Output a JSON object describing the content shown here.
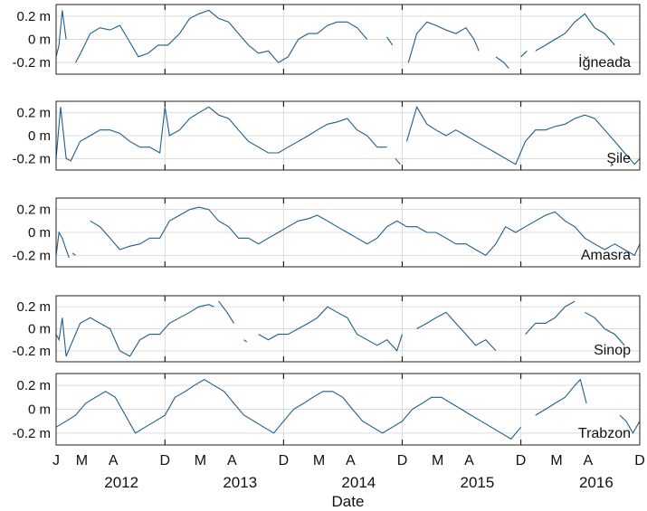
{
  "chart_data": {
    "type": "line",
    "title": "",
    "xlabel": "Date",
    "line_color": "#1f5d8c",
    "grid": true,
    "x_range": [
      "2012-01-01",
      "2016-12-01"
    ],
    "x_tick_labels": [
      "J",
      "M",
      "A",
      "D",
      "M",
      "A",
      "D",
      "M",
      "A",
      "D",
      "M",
      "A",
      "D",
      "M",
      "A",
      "D"
    ],
    "year_labels": [
      "2012",
      "2013",
      "2014",
      "2015",
      "2016"
    ],
    "y_tick_labels": [
      "0.2 m",
      "0 m",
      "-0.2 m"
    ],
    "y_ticks": [
      0.2,
      0,
      -0.2
    ],
    "ylim": [
      -0.3,
      0.3
    ],
    "panels": [
      {
        "name": "İğneada",
        "series": [
          {
            "x": [
              "2012-01-01",
              "2012-01-10",
              "2012-01-20",
              "2012-02-01"
            ],
            "y": [
              -0.15,
              -0.05,
              0.25,
              0.0
            ]
          },
          {
            "x": [
              "2012-03-01",
              "2012-03-20",
              "2012-04-15",
              "2012-05-15",
              "2012-06-15",
              "2012-07-15",
              "2012-08-10",
              "2012-09-10",
              "2012-10-10",
              "2012-11-10",
              "2012-12-10",
              "2013-01-15",
              "2013-02-15",
              "2013-03-15",
              "2013-04-15",
              "2013-05-15",
              "2013-06-15",
              "2013-07-15",
              "2013-08-15",
              "2013-09-15",
              "2013-10-15",
              "2013-11-15",
              "2013-12-15",
              "2014-01-15",
              "2014-02-15",
              "2014-03-15",
              "2014-04-15",
              "2014-05-15",
              "2014-06-15",
              "2014-07-15",
              "2014-08-15"
            ],
            "y": [
              -0.2,
              -0.1,
              0.05,
              0.1,
              0.08,
              0.12,
              0.0,
              -0.15,
              -0.12,
              -0.05,
              -0.05,
              0.05,
              0.18,
              0.22,
              0.25,
              0.18,
              0.15,
              0.05,
              -0.05,
              -0.12,
              -0.1,
              -0.2,
              -0.15,
              0.0,
              0.05,
              0.05,
              0.12,
              0.15,
              0.15,
              0.1,
              0.0
            ]
          },
          {
            "x": [
              "2014-10-15",
              "2014-11-01"
            ],
            "y": [
              0.02,
              -0.05
            ]
          },
          {
            "x": [
              "2014-12-20",
              "2015-01-15",
              "2015-02-15",
              "2015-03-15",
              "2015-04-15",
              "2015-05-15",
              "2015-06-15",
              "2015-07-10",
              "2015-07-25"
            ],
            "y": [
              -0.2,
              0.05,
              0.15,
              0.12,
              0.08,
              0.05,
              0.1,
              0.0,
              -0.1
            ]
          },
          {
            "x": [
              "2015-09-15",
              "2015-10-10",
              "2015-10-25"
            ],
            "y": [
              -0.15,
              -0.2,
              -0.25
            ]
          },
          {
            "x": [
              "2015-12-01",
              "2015-12-20"
            ],
            "y": [
              -0.15,
              -0.1
            ]
          },
          {
            "x": [
              "2016-01-15",
              "2016-02-15",
              "2016-03-15",
              "2016-04-15",
              "2016-05-15",
              "2016-06-15",
              "2016-07-15",
              "2016-08-15",
              "2016-09-15"
            ],
            "y": [
              -0.1,
              -0.05,
              0.0,
              0.05,
              0.15,
              0.22,
              0.1,
              0.05,
              -0.05
            ]
          },
          {
            "x": [
              "2016-10-01",
              "2016-10-20"
            ],
            "y": [
              -0.15,
              -0.18
            ]
          }
        ]
      },
      {
        "name": "Şile",
        "series": [
          {
            "x": [
              "2012-01-01",
              "2012-01-15",
              "2012-02-01",
              "2012-02-15",
              "2012-03-15",
              "2012-04-15",
              "2012-05-15",
              "2012-06-15",
              "2012-07-15",
              "2012-08-15",
              "2012-09-15",
              "2012-10-15",
              "2012-11-15",
              "2012-12-01",
              "2012-12-15",
              "2013-01-15",
              "2013-02-15",
              "2013-03-15",
              "2013-04-15",
              "2013-05-15",
              "2013-06-15",
              "2013-07-15",
              "2013-08-15",
              "2013-09-15",
              "2013-10-15",
              "2013-11-15",
              "2013-12-15",
              "2014-01-15",
              "2014-02-15",
              "2014-03-15",
              "2014-04-15",
              "2014-05-15",
              "2014-06-15",
              "2014-07-15",
              "2014-08-15",
              "2014-09-15",
              "2014-10-15"
            ],
            "y": [
              -0.2,
              0.25,
              -0.2,
              -0.22,
              -0.05,
              0.0,
              0.05,
              0.05,
              0.02,
              -0.05,
              -0.1,
              -0.1,
              -0.15,
              0.25,
              0.0,
              0.05,
              0.15,
              0.2,
              0.25,
              0.18,
              0.15,
              0.05,
              -0.05,
              -0.1,
              -0.15,
              -0.15,
              -0.1,
              -0.05,
              0.0,
              0.05,
              0.1,
              0.12,
              0.15,
              0.05,
              0.0,
              -0.1,
              -0.1
            ]
          },
          {
            "x": [
              "2014-11-10",
              "2014-11-25"
            ],
            "y": [
              -0.2,
              -0.25
            ]
          },
          {
            "x": [
              "2014-12-15",
              "2015-01-15",
              "2015-02-15",
              "2015-03-15",
              "2015-04-15",
              "2015-05-15",
              "2015-06-15",
              "2015-07-15",
              "2015-08-15",
              "2015-09-15",
              "2015-10-15",
              "2015-11-15",
              "2015-12-15",
              "2016-01-15",
              "2016-02-15",
              "2016-03-15",
              "2016-04-15",
              "2016-05-15",
              "2016-06-15",
              "2016-07-15",
              "2016-08-15",
              "2016-09-15",
              "2016-10-15",
              "2016-11-15",
              "2016-12-01"
            ],
            "y": [
              -0.05,
              0.25,
              0.1,
              0.05,
              0.0,
              0.05,
              0.0,
              -0.05,
              -0.1,
              -0.15,
              -0.2,
              -0.25,
              -0.05,
              0.05,
              0.05,
              0.08,
              0.1,
              0.15,
              0.18,
              0.15,
              0.05,
              -0.05,
              -0.15,
              -0.25,
              -0.2
            ]
          }
        ]
      },
      {
        "name": "Amasra",
        "series": [
          {
            "x": [
              "2012-01-01",
              "2012-01-10",
              "2012-01-20",
              "2012-02-01",
              "2012-02-10"
            ],
            "y": [
              -0.2,
              0.0,
              -0.05,
              -0.15,
              -0.22
            ]
          },
          {
            "x": [
              "2012-02-20",
              "2012-03-01"
            ],
            "y": [
              -0.18,
              -0.2
            ]
          },
          {
            "x": [
              "2012-04-15",
              "2012-05-15",
              "2012-06-15",
              "2012-07-15",
              "2012-08-15",
              "2012-09-15",
              "2012-10-15",
              "2012-11-15",
              "2012-12-15",
              "2013-01-15",
              "2013-02-15",
              "2013-03-15",
              "2013-04-15",
              "2013-05-15",
              "2013-06-15",
              "2013-07-15",
              "2013-08-15",
              "2013-09-15",
              "2013-10-15",
              "2013-11-15",
              "2013-12-15",
              "2014-01-15",
              "2014-02-15",
              "2014-03-15",
              "2014-04-15",
              "2014-05-15",
              "2014-06-15",
              "2014-07-15",
              "2014-08-15",
              "2014-09-15",
              "2014-10-15",
              "2014-11-15",
              "2014-12-15",
              "2015-01-15",
              "2015-02-15",
              "2015-03-15",
              "2015-04-15",
              "2015-05-15",
              "2015-06-15",
              "2015-07-15",
              "2015-08-15",
              "2015-09-15",
              "2015-10-15",
              "2015-11-15",
              "2015-12-15",
              "2016-01-15",
              "2016-02-15",
              "2016-03-15",
              "2016-04-15",
              "2016-05-15",
              "2016-06-15",
              "2016-07-15",
              "2016-08-15",
              "2016-09-15",
              "2016-10-15",
              "2016-11-15",
              "2016-12-01"
            ],
            "y": [
              0.1,
              0.05,
              -0.05,
              -0.15,
              -0.12,
              -0.1,
              -0.05,
              -0.05,
              0.1,
              0.15,
              0.2,
              0.22,
              0.2,
              0.1,
              0.05,
              -0.05,
              -0.05,
              -0.1,
              -0.05,
              0.0,
              0.05,
              0.1,
              0.12,
              0.15,
              0.1,
              0.05,
              0.0,
              -0.05,
              -0.1,
              -0.05,
              0.05,
              0.1,
              0.05,
              0.05,
              0.0,
              0.0,
              -0.05,
              -0.1,
              -0.1,
              -0.15,
              -0.2,
              -0.1,
              0.05,
              0.0,
              0.05,
              0.1,
              0.15,
              0.18,
              0.1,
              0.05,
              -0.05,
              -0.1,
              -0.15,
              -0.1,
              -0.15,
              -0.2,
              -0.1
            ]
          }
        ]
      },
      {
        "name": "Sinop",
        "series": [
          {
            "x": [
              "2012-01-01",
              "2012-01-10",
              "2012-01-20",
              "2012-02-01",
              "2012-02-15",
              "2012-03-15",
              "2012-04-15",
              "2012-05-15",
              "2012-06-15",
              "2012-07-15",
              "2012-08-15",
              "2012-09-15",
              "2012-10-15",
              "2012-11-15",
              "2012-12-15",
              "2013-01-15",
              "2013-02-15",
              "2013-03-15",
              "2013-04-15",
              "2013-05-01"
            ],
            "y": [
              -0.05,
              -0.1,
              0.1,
              -0.25,
              -0.15,
              0.05,
              0.1,
              0.05,
              0.0,
              -0.2,
              -0.25,
              -0.1,
              -0.05,
              -0.05,
              0.05,
              0.1,
              0.15,
              0.2,
              0.22,
              0.2
            ]
          },
          {
            "x": [
              "2013-05-15",
              "2013-06-10",
              "2013-07-01"
            ],
            "y": [
              0.25,
              0.15,
              0.05
            ]
          },
          {
            "x": [
              "2013-08-01",
              "2013-08-10"
            ],
            "y": [
              -0.1,
              -0.12
            ]
          },
          {
            "x": [
              "2013-09-15",
              "2013-10-15",
              "2013-11-15",
              "2013-12-15",
              "2014-01-15",
              "2014-02-15",
              "2014-03-15",
              "2014-04-15",
              "2014-05-15",
              "2014-06-15",
              "2014-07-15",
              "2014-08-15",
              "2014-09-15",
              "2014-10-15",
              "2014-11-15",
              "2014-12-01"
            ],
            "y": [
              -0.05,
              -0.1,
              -0.05,
              -0.05,
              0.0,
              0.05,
              0.1,
              0.2,
              0.15,
              0.1,
              -0.05,
              -0.1,
              -0.15,
              -0.1,
              -0.2,
              -0.05
            ]
          },
          {
            "x": [
              "2015-01-15",
              "2015-02-15",
              "2015-03-15",
              "2015-04-15",
              "2015-05-15",
              "2015-06-15",
              "2015-07-15",
              "2015-08-15",
              "2015-09-15"
            ],
            "y": [
              0.0,
              0.05,
              0.1,
              0.15,
              0.05,
              -0.05,
              -0.15,
              -0.1,
              -0.2
            ]
          },
          {
            "x": [
              "2015-12-15",
              "2016-01-15",
              "2016-02-15",
              "2016-03-15",
              "2016-04-15",
              "2016-05-15"
            ],
            "y": [
              -0.05,
              0.05,
              0.05,
              0.1,
              0.2,
              0.25
            ]
          },
          {
            "x": [
              "2016-06-15",
              "2016-07-15",
              "2016-08-15",
              "2016-09-15",
              "2016-10-15"
            ],
            "y": [
              0.15,
              0.1,
              0.0,
              -0.05,
              -0.15
            ]
          }
        ]
      },
      {
        "name": "Trabzon",
        "series": [
          {
            "x": [
              "2012-01-01",
              "2012-02-01",
              "2012-03-01",
              "2012-04-01",
              "2012-05-01",
              "2012-06-01",
              "2012-07-01",
              "2012-08-01",
              "2012-09-01",
              "2012-10-01",
              "2012-11-01",
              "2012-12-01",
              "2013-01-01",
              "2013-02-01",
              "2013-03-01",
              "2013-04-01",
              "2013-05-01",
              "2013-06-01",
              "2013-07-01",
              "2013-08-01",
              "2013-09-01",
              "2013-10-01",
              "2013-11-01",
              "2013-12-01",
              "2014-01-01",
              "2014-02-01",
              "2014-03-01",
              "2014-04-01",
              "2014-05-01",
              "2014-06-01",
              "2014-07-01",
              "2014-08-01",
              "2014-09-01",
              "2014-10-01",
              "2014-11-01",
              "2014-12-01",
              "2015-01-01",
              "2015-02-01",
              "2015-03-01",
              "2015-04-01",
              "2015-05-01",
              "2015-06-01",
              "2015-07-01",
              "2015-08-01",
              "2015-09-01",
              "2015-10-01",
              "2015-11-01",
              "2015-12-01"
            ],
            "y": [
              -0.15,
              -0.1,
              -0.05,
              0.05,
              0.1,
              0.15,
              0.1,
              -0.05,
              -0.2,
              -0.15,
              -0.1,
              -0.05,
              0.1,
              0.15,
              0.2,
              0.25,
              0.2,
              0.15,
              0.05,
              -0.05,
              -0.1,
              -0.15,
              -0.2,
              -0.1,
              0.0,
              0.05,
              0.1,
              0.15,
              0.15,
              0.1,
              0.0,
              -0.1,
              -0.15,
              -0.2,
              -0.15,
              -0.1,
              0.0,
              0.05,
              0.1,
              0.1,
              0.05,
              0.0,
              -0.05,
              -0.1,
              -0.15,
              -0.2,
              -0.25,
              -0.15
            ]
          },
          {
            "x": [
              "2016-01-15",
              "2016-02-15",
              "2016-03-15",
              "2016-04-15",
              "2016-05-15",
              "2016-06-01",
              "2016-06-20"
            ],
            "y": [
              -0.05,
              0.0,
              0.05,
              0.1,
              0.2,
              0.25,
              0.05
            ]
          },
          {
            "x": [
              "2016-10-01",
              "2016-10-20",
              "2016-11-10",
              "2016-12-01"
            ],
            "y": [
              -0.05,
              -0.1,
              -0.2,
              -0.1
            ]
          }
        ]
      }
    ]
  }
}
